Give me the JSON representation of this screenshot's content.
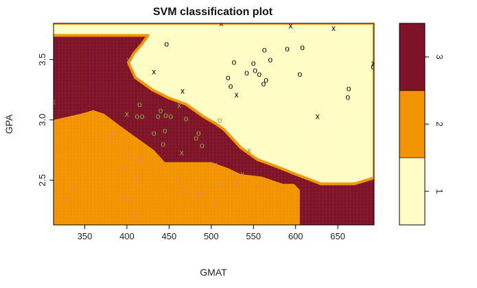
{
  "chart_data": {
    "type": "scatter",
    "title": "SVM classification plot",
    "xlabel": "GMAT",
    "ylabel": "GPA",
    "xlim": [
      313,
      693
    ],
    "ylim": [
      2.13,
      3.8
    ],
    "xticks": [
      "350",
      "400",
      "450",
      "500",
      "550",
      "600",
      "650"
    ],
    "yticks": [
      "2.5",
      "3.0",
      "3.5"
    ],
    "grid": false,
    "classes": [
      {
        "label": "1",
        "color": "#fffdc4"
      },
      {
        "label": "2",
        "color": "#f29400"
      },
      {
        "label": "3",
        "color": "#7e1327"
      }
    ],
    "point_colors": {
      "1": "#000000",
      "2": "#e8866a",
      "3": "#7cb342"
    },
    "regions": {
      "class1": [
        [
          232,
          3.8
        ],
        [
          693,
          3.8
        ],
        [
          693,
          2.52
        ],
        [
          670,
          2.47
        ],
        [
          630,
          2.47
        ],
        [
          600,
          2.55
        ],
        [
          575,
          2.62
        ],
        [
          555,
          2.67
        ],
        [
          535,
          2.77
        ],
        [
          515,
          2.92
        ],
        [
          505,
          2.97
        ],
        [
          490,
          3.03
        ],
        [
          470,
          3.13
        ],
        [
          450,
          3.18
        ],
        [
          430,
          3.25
        ],
        [
          410,
          3.35
        ],
        [
          402,
          3.47
        ],
        [
          408,
          3.55
        ],
        [
          418,
          3.63
        ],
        [
          425,
          3.7
        ],
        [
          232,
          3.7
        ]
      ],
      "class2": [
        [
          313,
          2.13
        ],
        [
          313,
          3.0
        ],
        [
          345,
          3.05
        ],
        [
          360,
          3.08
        ],
        [
          373,
          3.05
        ],
        [
          392,
          2.95
        ],
        [
          410,
          2.86
        ],
        [
          432,
          2.75
        ],
        [
          445,
          2.65
        ],
        [
          500,
          2.65
        ],
        [
          520,
          2.6
        ],
        [
          535,
          2.55
        ],
        [
          560,
          2.53
        ],
        [
          585,
          2.47
        ],
        [
          598,
          2.47
        ],
        [
          605,
          2.42
        ],
        [
          605,
          2.13
        ]
      ]
    },
    "points": [
      {
        "x": 313,
        "y": 3.15,
        "class": "3",
        "marker": "x"
      },
      {
        "x": 328,
        "y": 2.35,
        "class": "2",
        "marker": "x"
      },
      {
        "x": 337,
        "y": 2.44,
        "class": "2",
        "marker": "o"
      },
      {
        "x": 380,
        "y": 2.85,
        "class": "2",
        "marker": "o"
      },
      {
        "x": 383,
        "y": 2.89,
        "class": "2",
        "marker": "x"
      },
      {
        "x": 396,
        "y": 2.6,
        "class": "2",
        "marker": "o"
      },
      {
        "x": 400,
        "y": 2.72,
        "class": "2",
        "marker": "o"
      },
      {
        "x": 398,
        "y": 2.36,
        "class": "2",
        "marker": "o"
      },
      {
        "x": 405,
        "y": 2.35,
        "class": "2",
        "marker": "o"
      },
      {
        "x": 411,
        "y": 2.2,
        "class": "2",
        "marker": "o"
      },
      {
        "x": 412,
        "y": 2.51,
        "class": "2",
        "marker": "o"
      },
      {
        "x": 413,
        "y": 2.68,
        "class": "2",
        "marker": "o"
      },
      {
        "x": 418,
        "y": 2.67,
        "class": "2",
        "marker": "x"
      },
      {
        "x": 460,
        "y": 2.51,
        "class": "2",
        "marker": "o"
      },
      {
        "x": 468,
        "y": 2.41,
        "class": "2",
        "marker": "o"
      },
      {
        "x": 482,
        "y": 2.37,
        "class": "2",
        "marker": "o"
      },
      {
        "x": 488,
        "y": 2.4,
        "class": "2",
        "marker": "o"
      },
      {
        "x": 505,
        "y": 2.31,
        "class": "2",
        "marker": "x"
      },
      {
        "x": 505,
        "y": 2.63,
        "class": "2",
        "marker": "x"
      },
      {
        "x": 510,
        "y": 2.46,
        "class": "2",
        "marker": "o"
      },
      {
        "x": 528,
        "y": 2.55,
        "class": "2",
        "marker": "o"
      },
      {
        "x": 532,
        "y": 2.48,
        "class": "2",
        "marker": "o"
      },
      {
        "x": 537,
        "y": 2.55,
        "class": "2",
        "marker": "x"
      },
      {
        "x": 402,
        "y": 3.5,
        "class": "3",
        "marker": "x"
      },
      {
        "x": 400,
        "y": 3.05,
        "class": "3",
        "marker": "x"
      },
      {
        "x": 412,
        "y": 3.03,
        "class": "3",
        "marker": "o"
      },
      {
        "x": 415,
        "y": 3.13,
        "class": "3",
        "marker": "o"
      },
      {
        "x": 418,
        "y": 3.03,
        "class": "3",
        "marker": "o"
      },
      {
        "x": 432,
        "y": 2.89,
        "class": "3",
        "marker": "o"
      },
      {
        "x": 437,
        "y": 3.03,
        "class": "3",
        "marker": "o"
      },
      {
        "x": 440,
        "y": 3.08,
        "class": "3",
        "marker": "o"
      },
      {
        "x": 443,
        "y": 2.8,
        "class": "3",
        "marker": "o"
      },
      {
        "x": 445,
        "y": 2.91,
        "class": "3",
        "marker": "o"
      },
      {
        "x": 446,
        "y": 3.04,
        "class": "3",
        "marker": "o"
      },
      {
        "x": 452,
        "y": 3.03,
        "class": "3",
        "marker": "o"
      },
      {
        "x": 462,
        "y": 3.12,
        "class": "3",
        "marker": "x"
      },
      {
        "x": 465,
        "y": 2.73,
        "class": "3",
        "marker": "x"
      },
      {
        "x": 470,
        "y": 3.01,
        "class": "3",
        "marker": "o"
      },
      {
        "x": 482,
        "y": 2.85,
        "class": "3",
        "marker": "o"
      },
      {
        "x": 485,
        "y": 2.89,
        "class": "3",
        "marker": "o"
      },
      {
        "x": 489,
        "y": 2.79,
        "class": "3",
        "marker": "o"
      },
      {
        "x": 510,
        "y": 3.0,
        "class": "3",
        "marker": "o"
      },
      {
        "x": 545,
        "y": 2.75,
        "class": "3",
        "marker": "x"
      },
      {
        "x": 447,
        "y": 3.63,
        "class": "1",
        "marker": "o"
      },
      {
        "x": 432,
        "y": 3.4,
        "class": "1",
        "marker": "x"
      },
      {
        "x": 466,
        "y": 3.24,
        "class": "1",
        "marker": "x"
      },
      {
        "x": 512,
        "y": 3.8,
        "class": "1",
        "marker": "x"
      },
      {
        "x": 520,
        "y": 3.35,
        "class": "1",
        "marker": "o"
      },
      {
        "x": 523,
        "y": 3.28,
        "class": "1",
        "marker": "o"
      },
      {
        "x": 527,
        "y": 3.48,
        "class": "1",
        "marker": "o"
      },
      {
        "x": 530,
        "y": 3.21,
        "class": "1",
        "marker": "x"
      },
      {
        "x": 542,
        "y": 3.39,
        "class": "1",
        "marker": "o"
      },
      {
        "x": 550,
        "y": 3.47,
        "class": "1",
        "marker": "o"
      },
      {
        "x": 552,
        "y": 3.41,
        "class": "1",
        "marker": "o"
      },
      {
        "x": 557,
        "y": 3.38,
        "class": "1",
        "marker": "o"
      },
      {
        "x": 562,
        "y": 3.3,
        "class": "1",
        "marker": "o"
      },
      {
        "x": 563,
        "y": 3.58,
        "class": "1",
        "marker": "o"
      },
      {
        "x": 565,
        "y": 3.33,
        "class": "1",
        "marker": "o"
      },
      {
        "x": 570,
        "y": 3.5,
        "class": "1",
        "marker": "o"
      },
      {
        "x": 590,
        "y": 3.59,
        "class": "1",
        "marker": "o"
      },
      {
        "x": 594,
        "y": 3.78,
        "class": "1",
        "marker": "x"
      },
      {
        "x": 605,
        "y": 3.38,
        "class": "1",
        "marker": "o"
      },
      {
        "x": 608,
        "y": 3.6,
        "class": "1",
        "marker": "o"
      },
      {
        "x": 626,
        "y": 3.03,
        "class": "1",
        "marker": "x"
      },
      {
        "x": 645,
        "y": 3.76,
        "class": "1",
        "marker": "x"
      },
      {
        "x": 662,
        "y": 3.19,
        "class": "1",
        "marker": "o"
      },
      {
        "x": 663,
        "y": 3.26,
        "class": "1",
        "marker": "o"
      },
      {
        "x": 692,
        "y": 3.44,
        "class": "1",
        "marker": "o"
      },
      {
        "x": 692,
        "y": 3.47,
        "class": "1",
        "marker": "x"
      }
    ]
  }
}
